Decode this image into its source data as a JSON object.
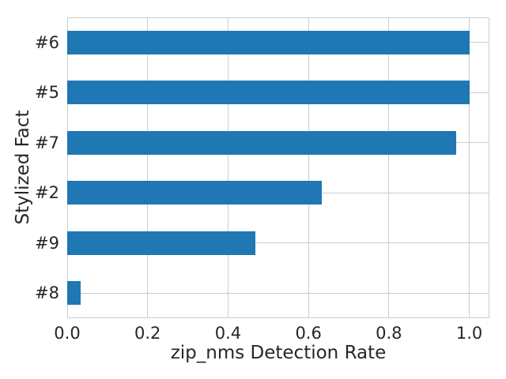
{
  "chart_data": {
    "type": "bar",
    "orientation": "horizontal",
    "title": "",
    "xlabel": "zip_nms Detection Rate",
    "ylabel": "Stylized Fact",
    "categories": [
      "#6",
      "#5",
      "#7",
      "#2",
      "#9",
      "#8"
    ],
    "values": [
      1.0,
      1.0,
      0.967,
      0.633,
      0.467,
      0.033
    ],
    "xlim": [
      0,
      1.05
    ],
    "xticks": [
      0.0,
      0.2,
      0.4,
      0.6,
      0.8,
      1.0
    ],
    "xtick_labels": [
      "0.0",
      "0.2",
      "0.4",
      "0.6",
      "0.8",
      "1.0"
    ],
    "grid": true,
    "legend": false,
    "colors": {
      "bar": "#1f77b4",
      "grid": "#cccccc",
      "text": "#262626",
      "background": "#ffffff"
    }
  }
}
